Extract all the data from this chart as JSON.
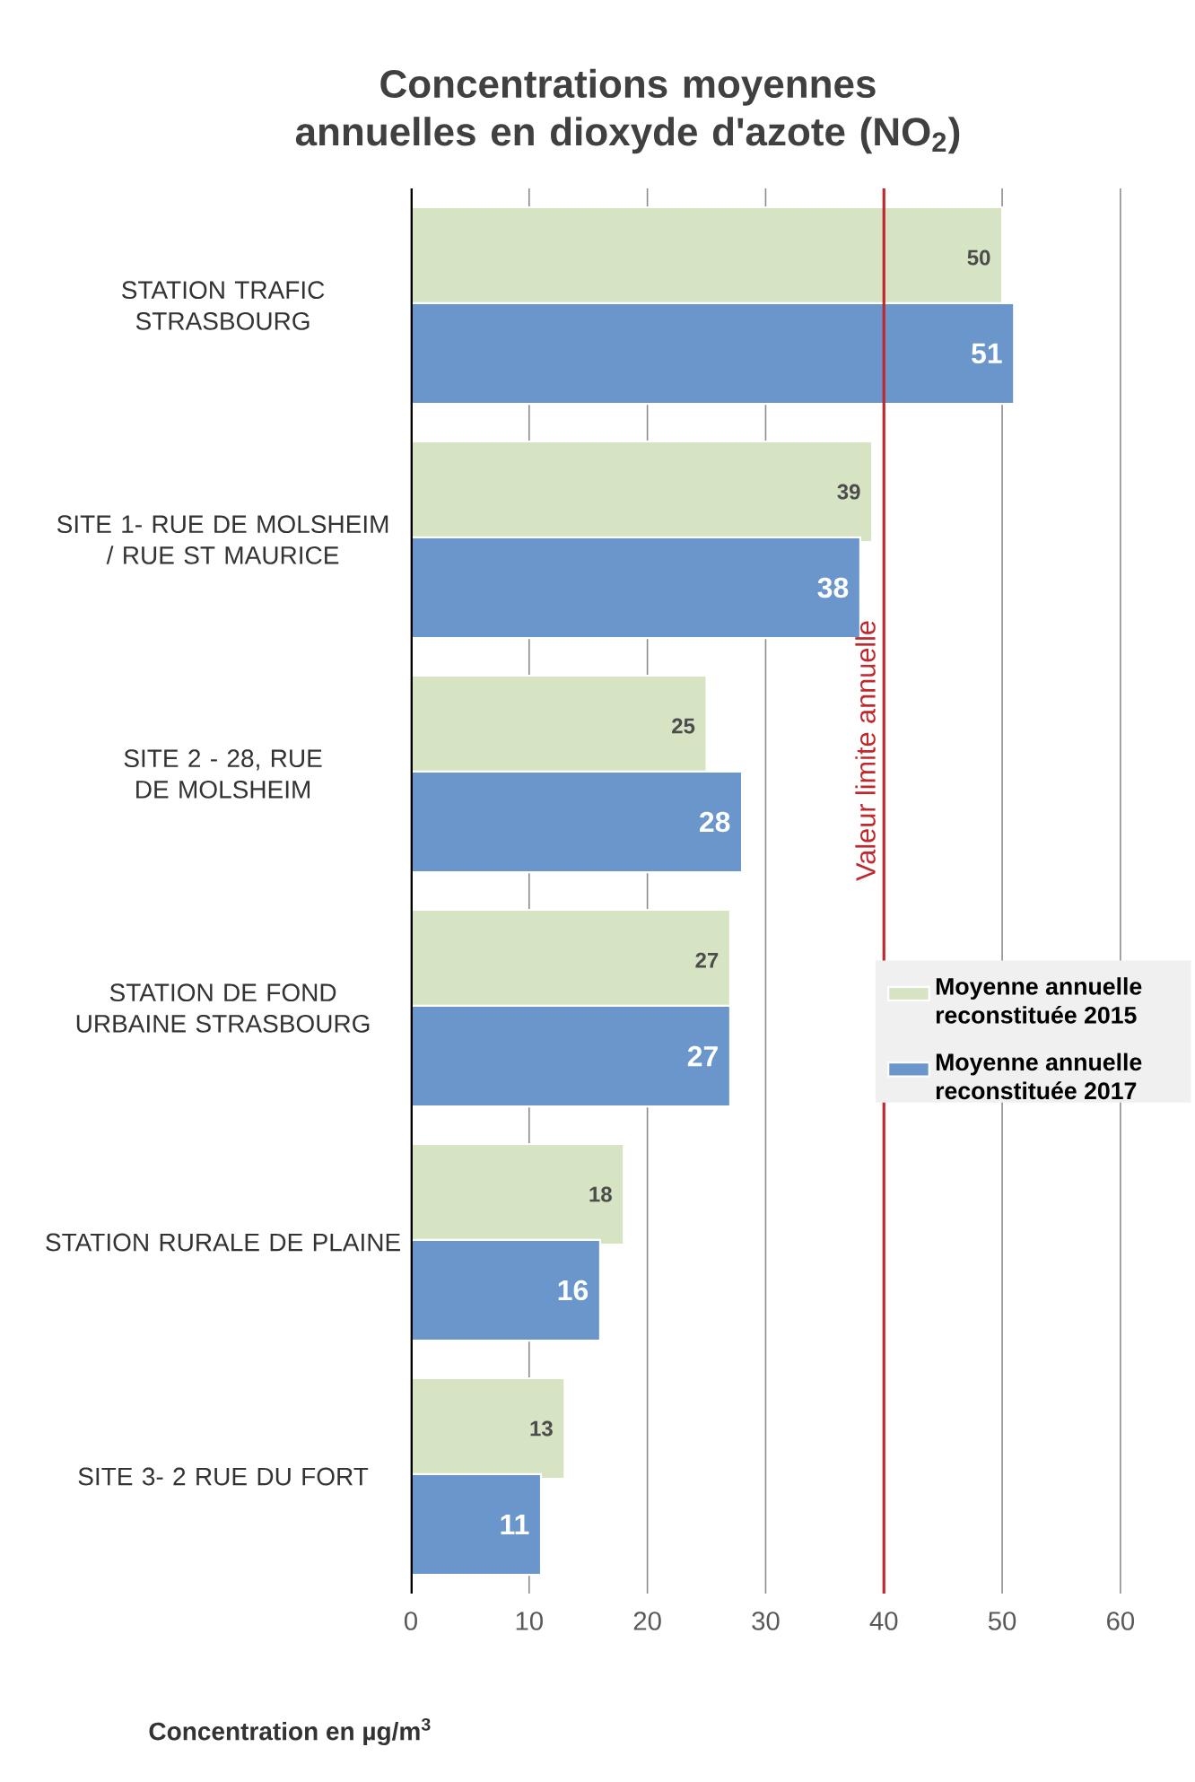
{
  "chart_data": {
    "type": "bar",
    "orientation": "horizontal",
    "title": "Concentrations moyennes annuelles en dioxyde d'azote (NO$_{2}$)",
    "xlabel": "Concentration en µg/m$^{3}$",
    "categories": [
      "STATION TRAFIC STRASBOURG",
      "SITE 1- RUE DE MOLSHEIM / RUE ST MAURICE",
      "SITE 2 - 28, RUE DE MOLSHEIM",
      "STATION DE FOND URBAINE STRASBOURG",
      "STATION RURALE DE PLAINE",
      "SITE 3- 2 RUE DU FORT"
    ],
    "series": [
      {
        "name": "Moyenne annuelle reconstituée 2015",
        "color": "#d7e4c4",
        "values": [
          50,
          39,
          25,
          27,
          18,
          13
        ]
      },
      {
        "name": "Moyenne annuelle reconstituée 2017",
        "color": "#6a96cc",
        "values": [
          51,
          38,
          28,
          27,
          16,
          11
        ]
      }
    ],
    "xlim": [
      0,
      66
    ],
    "xticks": [
      0,
      10,
      20,
      30,
      40,
      50,
      60
    ],
    "grid": "x",
    "legend": "right",
    "data_labels": true,
    "ref_lines": [
      {
        "axis": "x",
        "value": 40,
        "label": "Valeur limite annuelle",
        "color": "#c0282d"
      }
    ]
  }
}
